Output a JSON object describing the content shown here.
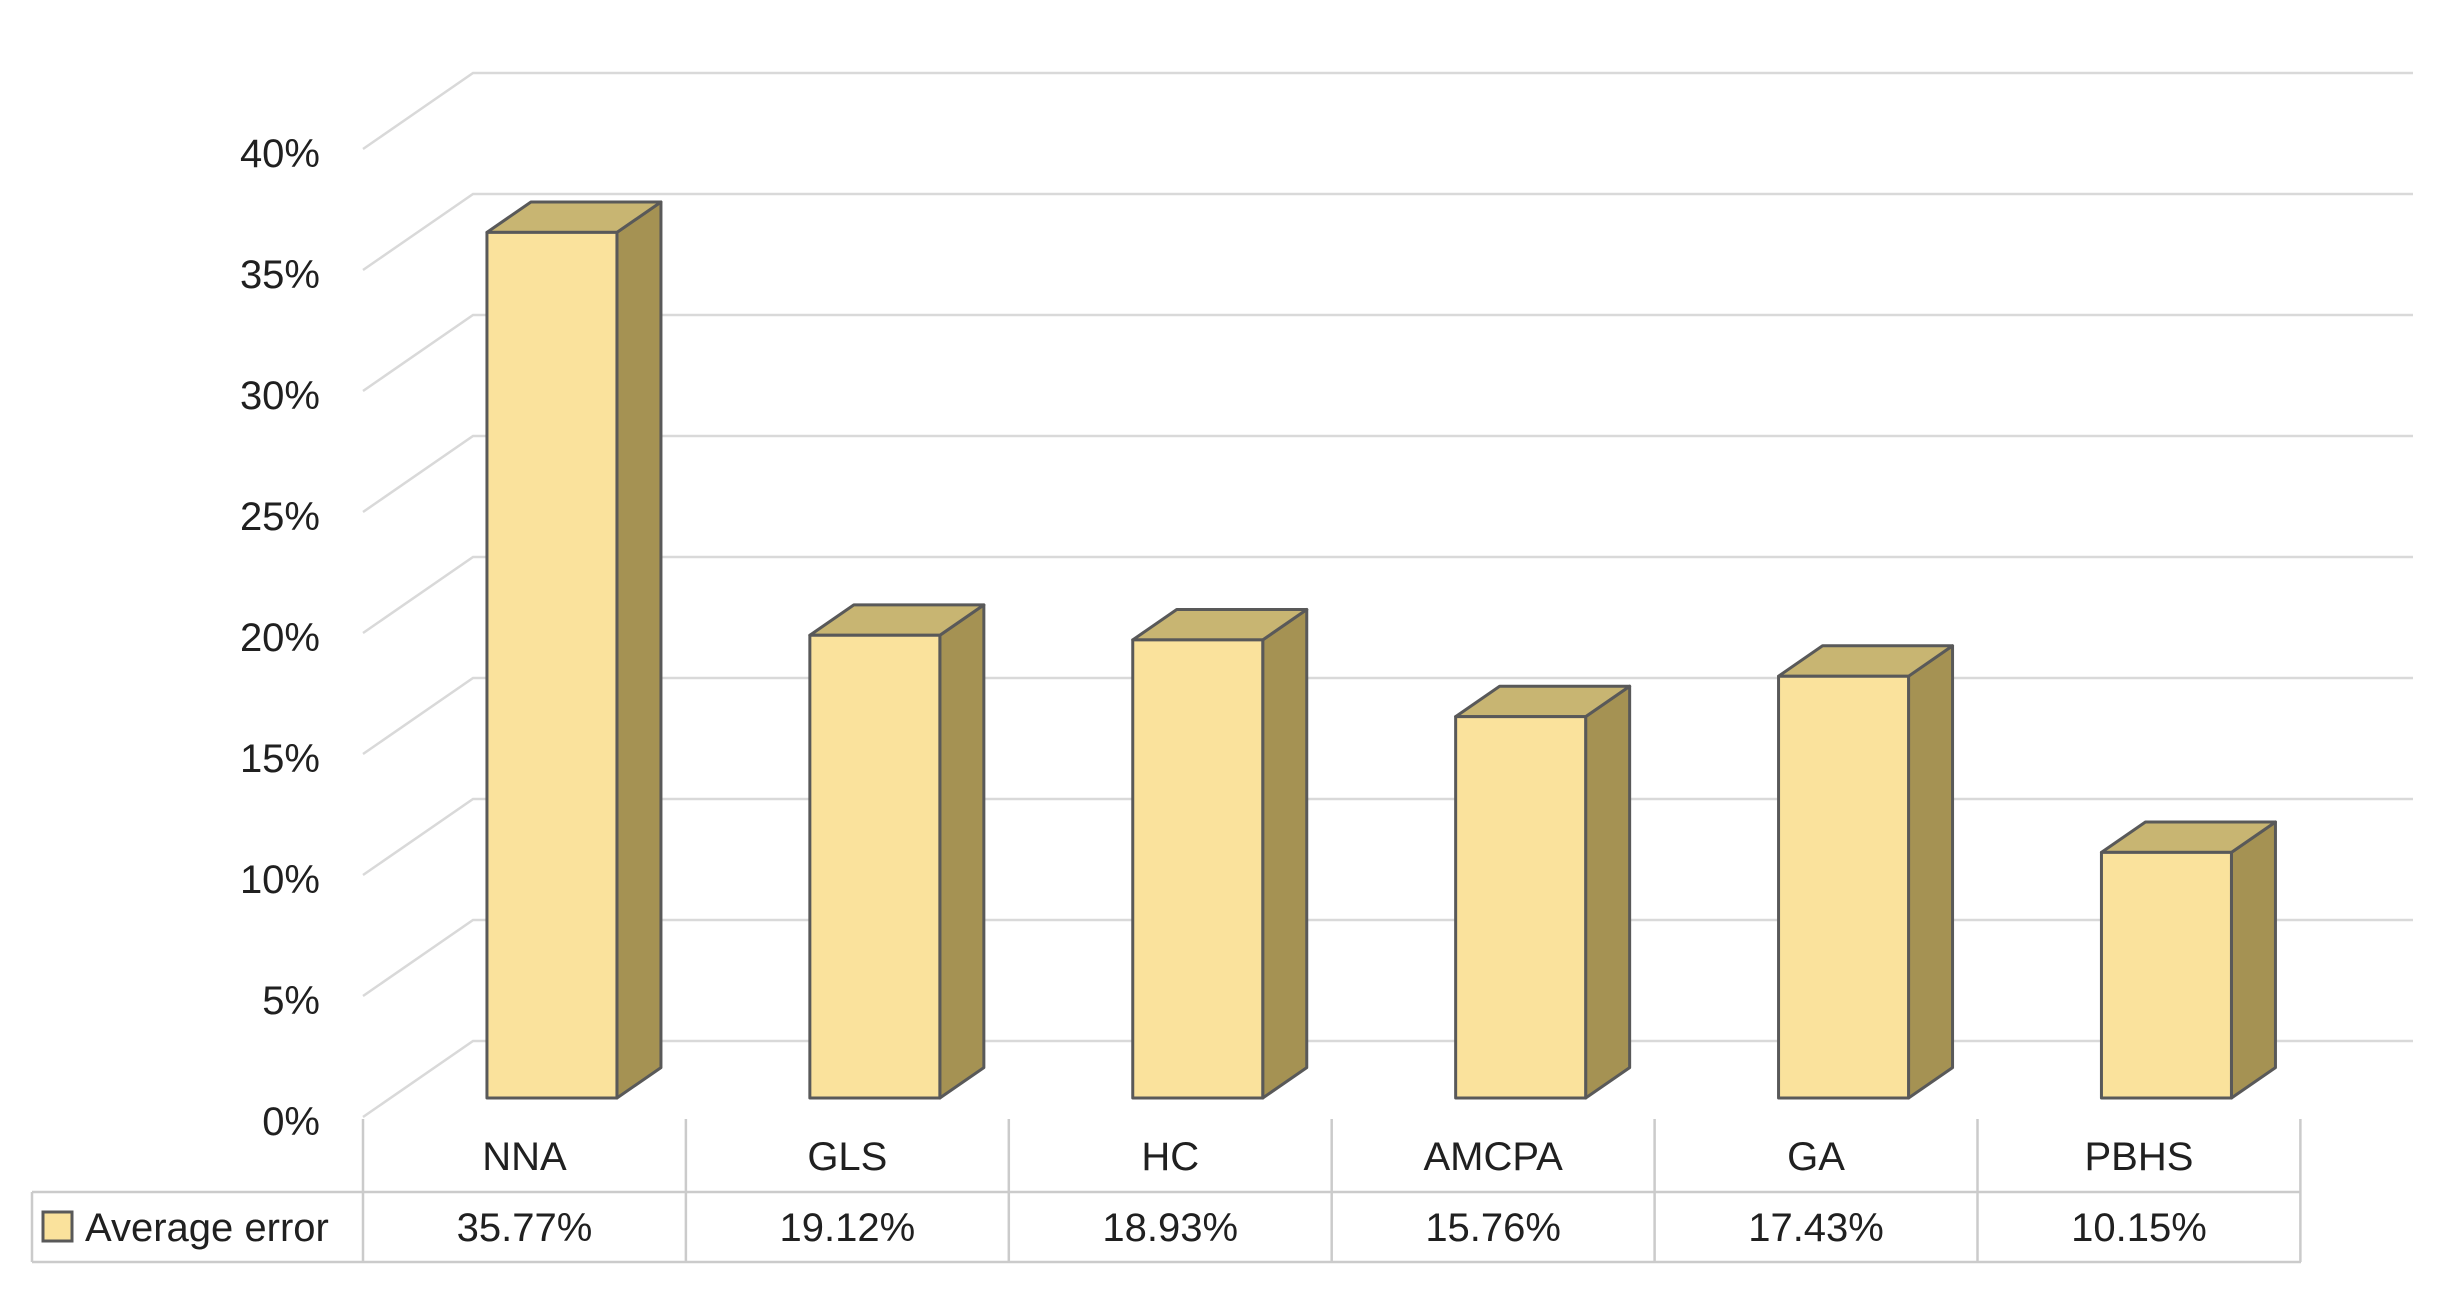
{
  "chart_data": {
    "type": "bar",
    "style": "3d-clustered-column",
    "title": "",
    "xlabel": "",
    "ylabel": "",
    "categories": [
      "NNA",
      "GLS",
      "HC",
      "AMCPA",
      "GA",
      "PBHS"
    ],
    "series": [
      {
        "name": "Average error",
        "values": [
          35.77,
          19.12,
          18.93,
          15.76,
          17.43,
          10.15
        ],
        "value_labels": [
          "35.77%",
          "19.12%",
          "18.93%",
          "15.76%",
          "17.43%",
          "10.15%"
        ]
      }
    ],
    "ylim": [
      0,
      40
    ],
    "ytick_step": 5,
    "ytick_labels": [
      "0%",
      "5%",
      "10%",
      "15%",
      "20%",
      "25%",
      "30%",
      "35%",
      "40%"
    ],
    "grid": true,
    "legend_position": "data-table-left",
    "data_table_shown": true,
    "colors": {
      "bar_front": "#FAE29C",
      "bar_top": "#C8B572",
      "bar_side": "#A59253",
      "bar_outline": "#595959",
      "gridline": "#D9D9D9",
      "table_border": "#CBCBCB",
      "text": "#202020",
      "background": "#FFFFFF"
    }
  }
}
